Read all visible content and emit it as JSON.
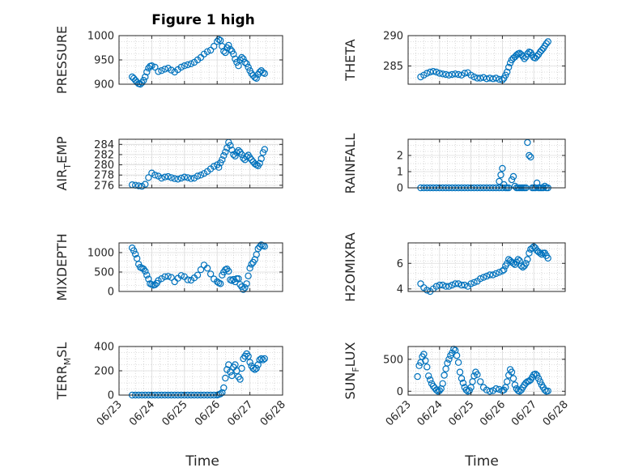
{
  "title": "Figure 1 high",
  "xlabel": "Time",
  "x_ticks": [
    "06/23",
    "06/24",
    "06/25",
    "06/26",
    "06/27",
    "06/28"
  ],
  "marker_color": "#0072BD",
  "chart_data": [
    {
      "type": "scatter",
      "ylabel": "PRESSURE",
      "ylabel_main": "PRESSURE",
      "ylabel_sub": "",
      "ylabel_rest": "",
      "ylim": [
        900,
        1000
      ],
      "yticks": [
        900,
        950,
        1000
      ],
      "grid": true,
      "x": [
        23.4,
        23.45,
        23.5,
        23.55,
        23.6,
        23.65,
        23.7,
        23.75,
        23.8,
        23.85,
        23.9,
        23.95,
        24.0,
        24.1,
        24.2,
        24.3,
        24.4,
        24.5,
        24.6,
        24.7,
        24.8,
        24.9,
        25.0,
        25.1,
        25.2,
        25.3,
        25.4,
        25.5,
        25.6,
        25.7,
        25.8,
        25.9,
        26.0,
        26.05,
        26.1,
        26.15,
        26.2,
        26.25,
        26.3,
        26.35,
        26.4,
        26.45,
        26.5,
        26.55,
        26.6,
        26.65,
        26.7,
        26.75,
        26.8,
        26.85,
        26.9,
        26.95,
        27.0,
        27.05,
        27.1,
        27.15,
        27.2,
        27.25,
        27.3,
        27.35,
        27.4,
        27.45
      ],
      "y": [
        915,
        912,
        908,
        904,
        901,
        900,
        903,
        908,
        915,
        925,
        933,
        937,
        938,
        935,
        926,
        928,
        931,
        933,
        929,
        925,
        930,
        935,
        938,
        940,
        942,
        945,
        950,
        955,
        962,
        967,
        970,
        978,
        988,
        992,
        990,
        978,
        968,
        965,
        975,
        980,
        972,
        968,
        962,
        952,
        945,
        938,
        950,
        955,
        952,
        945,
        942,
        935,
        928,
        922,
        918,
        914,
        912,
        920,
        925,
        928,
        924,
        922
      ]
    },
    {
      "type": "scatter",
      "ylabel": "THETA",
      "ylabel_main": "THETA",
      "ylabel_sub": "",
      "ylabel_rest": "",
      "ylim": [
        282,
        290
      ],
      "yticks": [
        285,
        290
      ],
      "grid": true,
      "x": [
        23.4,
        23.5,
        23.6,
        23.7,
        23.8,
        23.9,
        24.0,
        24.1,
        24.2,
        24.3,
        24.4,
        24.5,
        24.6,
        24.7,
        24.8,
        24.9,
        25.0,
        25.1,
        25.2,
        25.3,
        25.4,
        25.5,
        25.6,
        25.7,
        25.8,
        25.9,
        26.0,
        26.05,
        26.1,
        26.15,
        26.2,
        26.25,
        26.3,
        26.35,
        26.4,
        26.45,
        26.5,
        26.55,
        26.6,
        26.65,
        26.7,
        26.75,
        26.8,
        26.85,
        26.9,
        26.95,
        27.0,
        27.05,
        27.1,
        27.15,
        27.2,
        27.25,
        27.3,
        27.35,
        27.4,
        27.45
      ],
      "y": [
        283.2,
        283.5,
        283.8,
        284.0,
        284.1,
        284.0,
        283.8,
        283.7,
        283.6,
        283.5,
        283.6,
        283.7,
        283.6,
        283.5,
        283.8,
        283.9,
        283.5,
        283.2,
        283.0,
        283.0,
        283.1,
        282.9,
        283.0,
        282.9,
        283.0,
        282.8,
        282.7,
        283.0,
        283.5,
        284.0,
        284.8,
        285.5,
        286.0,
        286.3,
        286.5,
        286.8,
        287.0,
        287.1,
        286.9,
        286.6,
        286.2,
        286.5,
        287.0,
        287.3,
        287.2,
        286.8,
        286.4,
        286.3,
        286.6,
        286.9,
        287.3,
        287.6,
        287.9,
        288.3,
        288.7,
        289.0
      ]
    },
    {
      "type": "scatter",
      "ylabel": "AIR_TEMP",
      "ylabel_main": "AIR",
      "ylabel_sub": "T",
      "ylabel_rest": "EMP",
      "ylim": [
        275.5,
        285
      ],
      "yticks": [
        276,
        278,
        280,
        282,
        284
      ],
      "grid": true,
      "x": [
        23.4,
        23.5,
        23.6,
        23.7,
        23.8,
        23.9,
        24.0,
        24.1,
        24.2,
        24.3,
        24.4,
        24.5,
        24.6,
        24.7,
        24.8,
        24.9,
        25.0,
        25.1,
        25.2,
        25.3,
        25.4,
        25.5,
        25.6,
        25.7,
        25.8,
        25.9,
        26.0,
        26.05,
        26.1,
        26.15,
        26.2,
        26.25,
        26.3,
        26.35,
        26.4,
        26.45,
        26.5,
        26.55,
        26.6,
        26.65,
        26.7,
        26.75,
        26.8,
        26.85,
        26.9,
        26.95,
        27.0,
        27.05,
        27.1,
        27.15,
        27.2,
        27.25,
        27.3,
        27.35,
        27.4,
        27.45
      ],
      "y": [
        276.1,
        276.0,
        275.9,
        275.8,
        276.2,
        277.5,
        278.4,
        278.0,
        277.8,
        277.4,
        277.6,
        277.7,
        277.5,
        277.3,
        277.2,
        277.4,
        277.6,
        277.5,
        277.3,
        277.4,
        277.8,
        278.0,
        278.3,
        278.7,
        279.2,
        279.7,
        280.0,
        279.5,
        280.4,
        281.0,
        281.8,
        282.5,
        283.3,
        284.4,
        283.8,
        282.9,
        282.0,
        281.7,
        282.4,
        282.8,
        282.5,
        282.0,
        281.3,
        281.0,
        281.6,
        281.9,
        281.4,
        281.0,
        280.6,
        280.2,
        280.0,
        279.8,
        280.3,
        281.2,
        282.4,
        283.0
      ]
    },
    {
      "type": "scatter",
      "ylabel": "RAINFALL",
      "ylabel_main": "RAINFALL",
      "ylabel_sub": "",
      "ylabel_rest": "",
      "ylim": [
        0,
        3
      ],
      "yticks": [
        0,
        1,
        2
      ],
      "grid": true,
      "x": [
        23.4,
        23.5,
        23.6,
        23.7,
        23.8,
        23.9,
        24.0,
        24.1,
        24.2,
        24.3,
        24.4,
        24.5,
        24.6,
        24.7,
        24.8,
        24.9,
        25.0,
        25.1,
        25.2,
        25.3,
        25.4,
        25.5,
        25.6,
        25.7,
        25.8,
        25.9,
        26.0,
        25.9,
        25.95,
        26.0,
        26.05,
        26.1,
        26.15,
        26.2,
        26.3,
        26.35,
        26.4,
        26.45,
        26.5,
        26.55,
        26.6,
        26.65,
        26.7,
        26.75,
        26.8,
        26.85,
        26.9,
        26.95,
        27.0,
        27.05,
        27.1,
        27.15,
        27.2,
        27.25,
        27.3,
        27.35,
        27.4,
        27.45
      ],
      "y": [
        0,
        0,
        0,
        0,
        0,
        0,
        0,
        0,
        0,
        0,
        0,
        0,
        0,
        0,
        0,
        0,
        0,
        0,
        0,
        0,
        0,
        0,
        0,
        0,
        0,
        0,
        0,
        0.4,
        0.8,
        1.2,
        0.2,
        0,
        0,
        0,
        0.5,
        0.7,
        0.1,
        0,
        0,
        0,
        0,
        0,
        0,
        0,
        2.8,
        2.0,
        1.9,
        0,
        0,
        0,
        0.3,
        0,
        0,
        0,
        0,
        0.1,
        0,
        0
      ]
    },
    {
      "type": "scatter",
      "ylabel": "MIXDEPTH",
      "ylabel_main": "MIXDEPTH",
      "ylabel_sub": "",
      "ylabel_rest": "",
      "ylim": [
        0,
        1250
      ],
      "yticks": [
        0,
        500,
        1000
      ],
      "grid": true,
      "x": [
        23.4,
        23.45,
        23.5,
        23.55,
        23.6,
        23.65,
        23.7,
        23.75,
        23.8,
        23.85,
        23.9,
        23.95,
        24.0,
        24.05,
        24.1,
        24.15,
        24.2,
        24.3,
        24.4,
        24.5,
        24.6,
        24.7,
        24.8,
        24.9,
        25.0,
        25.1,
        25.2,
        25.3,
        25.4,
        25.5,
        25.6,
        25.7,
        25.8,
        25.9,
        26.0,
        26.05,
        26.1,
        26.15,
        26.2,
        26.25,
        26.3,
        26.35,
        26.4,
        26.45,
        26.5,
        26.55,
        26.6,
        26.65,
        26.7,
        26.75,
        26.8,
        26.85,
        26.9,
        26.95,
        27.0,
        27.05,
        27.1,
        27.15,
        27.2,
        27.25,
        27.3,
        27.35,
        27.4,
        27.45
      ],
      "y": [
        1120,
        1050,
        960,
        850,
        700,
        620,
        600,
        580,
        520,
        420,
        320,
        200,
        180,
        160,
        170,
        210,
        280,
        330,
        380,
        390,
        360,
        250,
        340,
        410,
        380,
        300,
        290,
        350,
        420,
        560,
        680,
        600,
        450,
        320,
        250,
        220,
        200,
        420,
        500,
        560,
        580,
        520,
        300,
        280,
        310,
        250,
        330,
        330,
        180,
        120,
        50,
        100,
        200,
        400,
        600,
        700,
        750,
        820,
        950,
        1100,
        1150,
        1200,
        1180,
        1160
      ]
    },
    {
      "type": "scatter",
      "ylabel": "H2OMIXRA",
      "ylabel_main": "H2OMIXRA",
      "ylabel_sub": "",
      "ylabel_rest": "",
      "ylim": [
        3.8,
        7.6
      ],
      "yticks": [
        4,
        6
      ],
      "grid": true,
      "x": [
        23.4,
        23.5,
        23.6,
        23.7,
        23.8,
        23.9,
        24.0,
        24.1,
        24.2,
        24.3,
        24.4,
        24.5,
        24.6,
        24.7,
        24.8,
        24.9,
        25.0,
        25.1,
        25.2,
        25.3,
        25.4,
        25.5,
        25.6,
        25.7,
        25.8,
        25.9,
        26.0,
        26.05,
        26.1,
        26.15,
        26.2,
        26.25,
        26.3,
        26.35,
        26.4,
        26.45,
        26.5,
        26.55,
        26.6,
        26.65,
        26.7,
        26.75,
        26.8,
        26.85,
        26.9,
        26.95,
        27.0,
        27.05,
        27.1,
        27.15,
        27.2,
        27.25,
        27.3,
        27.35,
        27.4,
        27.45
      ],
      "y": [
        4.4,
        4.1,
        3.9,
        3.8,
        4.0,
        4.2,
        4.3,
        4.3,
        4.2,
        4.2,
        4.3,
        4.4,
        4.4,
        4.3,
        4.3,
        4.2,
        4.4,
        4.5,
        4.6,
        4.8,
        4.9,
        5.0,
        5.1,
        5.1,
        5.2,
        5.3,
        5.4,
        5.5,
        5.8,
        6.0,
        6.3,
        6.2,
        6.1,
        6.0,
        5.9,
        6.1,
        6.3,
        6.2,
        5.8,
        5.7,
        5.8,
        6.0,
        6.3,
        6.8,
        7.1,
        7.2,
        7.3,
        7.2,
        7.0,
        6.9,
        6.8,
        6.7,
        6.8,
        6.8,
        6.6,
        6.4
      ]
    },
    {
      "type": "scatter",
      "ylabel": "TERR_MSL",
      "ylabel_main": "TERR",
      "ylabel_sub": "M",
      "ylabel_rest": "SL",
      "ylim": [
        0,
        400
      ],
      "yticks": [
        0,
        200,
        400
      ],
      "grid": true,
      "x": [
        23.4,
        23.5,
        23.6,
        23.7,
        23.8,
        23.9,
        24.0,
        24.1,
        24.2,
        24.3,
        24.4,
        24.5,
        24.6,
        24.7,
        24.8,
        24.9,
        25.0,
        25.1,
        25.2,
        25.3,
        25.4,
        25.5,
        25.6,
        25.7,
        25.8,
        25.9,
        26.0,
        26.05,
        26.1,
        26.15,
        26.2,
        26.25,
        26.3,
        26.35,
        26.4,
        26.45,
        26.5,
        26.55,
        26.6,
        26.65,
        26.7,
        26.75,
        26.8,
        26.85,
        26.9,
        26.95,
        27.0,
        27.05,
        27.1,
        27.15,
        27.2,
        27.25,
        27.3,
        27.35,
        27.4,
        27.45
      ],
      "y": [
        0,
        0,
        0,
        0,
        0,
        0,
        0,
        0,
        0,
        0,
        0,
        0,
        0,
        0,
        0,
        0,
        0,
        0,
        0,
        0,
        0,
        0,
        0,
        0,
        0,
        0,
        0,
        5,
        10,
        20,
        60,
        140,
        210,
        250,
        190,
        160,
        230,
        250,
        200,
        150,
        130,
        220,
        300,
        320,
        340,
        320,
        270,
        240,
        220,
        210,
        220,
        250,
        290,
        300,
        290,
        300
      ]
    },
    {
      "type": "scatter",
      "ylabel": "SUN_FLUX",
      "ylabel_main": "SUN",
      "ylabel_sub": "F",
      "ylabel_rest": "LUX",
      "ylim": [
        -60,
        700
      ],
      "yticks": [
        0,
        500
      ],
      "grid": true,
      "x": [
        23.3,
        23.35,
        23.4,
        23.45,
        23.5,
        23.55,
        23.6,
        23.65,
        23.7,
        23.75,
        23.8,
        23.85,
        23.9,
        23.95,
        24.0,
        24.05,
        24.1,
        24.15,
        24.2,
        24.25,
        24.3,
        24.35,
        24.4,
        24.45,
        24.5,
        24.55,
        24.6,
        24.65,
        24.7,
        24.75,
        24.8,
        24.85,
        24.9,
        24.95,
        25.0,
        25.05,
        25.1,
        25.15,
        25.2,
        25.3,
        25.4,
        25.5,
        25.6,
        25.7,
        25.8,
        25.9,
        26.0,
        26.05,
        26.1,
        26.15,
        26.2,
        26.25,
        26.3,
        26.35,
        26.4,
        26.45,
        26.5,
        26.55,
        26.6,
        26.65,
        26.7,
        26.75,
        26.8,
        26.85,
        26.9,
        26.95,
        27.0,
        27.05,
        27.1,
        27.15,
        27.2,
        27.25,
        27.3,
        27.35,
        27.4,
        27.45
      ],
      "y": [
        230,
        400,
        450,
        540,
        580,
        480,
        380,
        240,
        180,
        120,
        80,
        50,
        20,
        0,
        10,
        40,
        120,
        250,
        350,
        440,
        500,
        560,
        600,
        660,
        640,
        560,
        450,
        300,
        200,
        130,
        60,
        20,
        0,
        10,
        60,
        150,
        240,
        300,
        260,
        150,
        60,
        20,
        0,
        10,
        40,
        30,
        10,
        20,
        60,
        150,
        250,
        340,
        300,
        200,
        100,
        40,
        10,
        0,
        20,
        60,
        100,
        130,
        150,
        160,
        180,
        220,
        260,
        270,
        250,
        200,
        150,
        100,
        60,
        20,
        0,
        5
      ]
    }
  ]
}
